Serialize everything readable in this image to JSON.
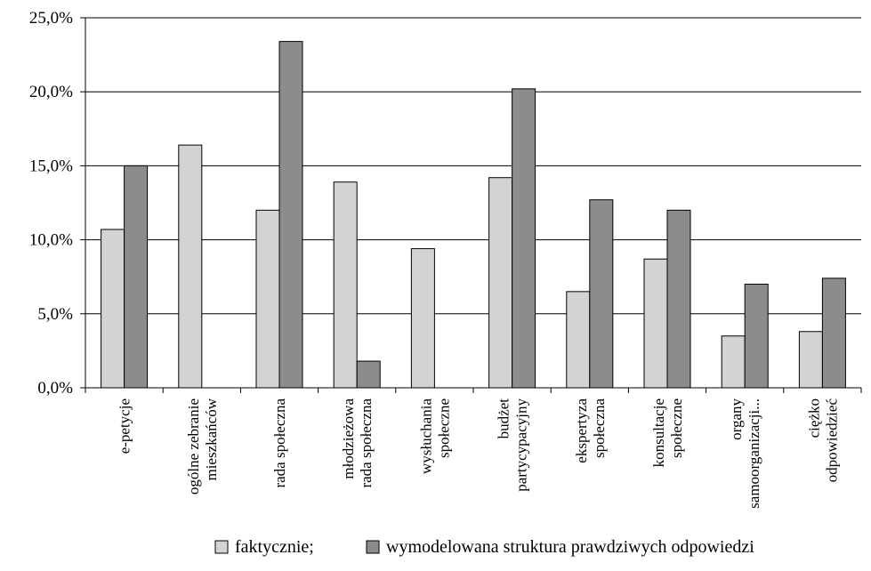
{
  "chart_data": {
    "type": "bar",
    "title": "",
    "xlabel": "",
    "ylabel": "",
    "ylim": [
      0,
      25
    ],
    "y_ticks": [
      {
        "value": 0,
        "label": "0,0%"
      },
      {
        "value": 5,
        "label": "5,0%"
      },
      {
        "value": 10,
        "label": "10,0%"
      },
      {
        "value": 15,
        "label": "15,0%"
      },
      {
        "value": 20,
        "label": "20,0%"
      },
      {
        "value": 25,
        "label": "25,0%"
      }
    ],
    "grid": true,
    "legend_position": "bottom",
    "categories": [
      [
        "e-petycje"
      ],
      [
        "ogólne zebranie",
        "mieszkańców"
      ],
      [
        "rada społeczna"
      ],
      [
        "młodzieżowa",
        "rada społeczna"
      ],
      [
        "wysłuchania",
        "społeczne"
      ],
      [
        "budżet",
        "partycypacyjny"
      ],
      [
        "ekspertyza",
        "społeczna"
      ],
      [
        "konsultacje",
        "społeczne"
      ],
      [
        "organy",
        "samoorganizacji..."
      ],
      [
        "ciężko",
        "odpowiedzieć"
      ]
    ],
    "series": [
      {
        "name": "faktycznie;",
        "color": "#d3d3d3",
        "values": [
          10.7,
          16.4,
          12.0,
          13.9,
          9.4,
          14.2,
          6.5,
          8.7,
          3.5,
          3.8
        ]
      },
      {
        "name": "wymodelowana struktura prawdziwych odpowiedzi",
        "color": "#8c8c8c",
        "values": [
          15.0,
          0,
          23.4,
          1.8,
          0,
          20.2,
          12.7,
          12.0,
          7.0,
          7.4
        ]
      }
    ]
  }
}
